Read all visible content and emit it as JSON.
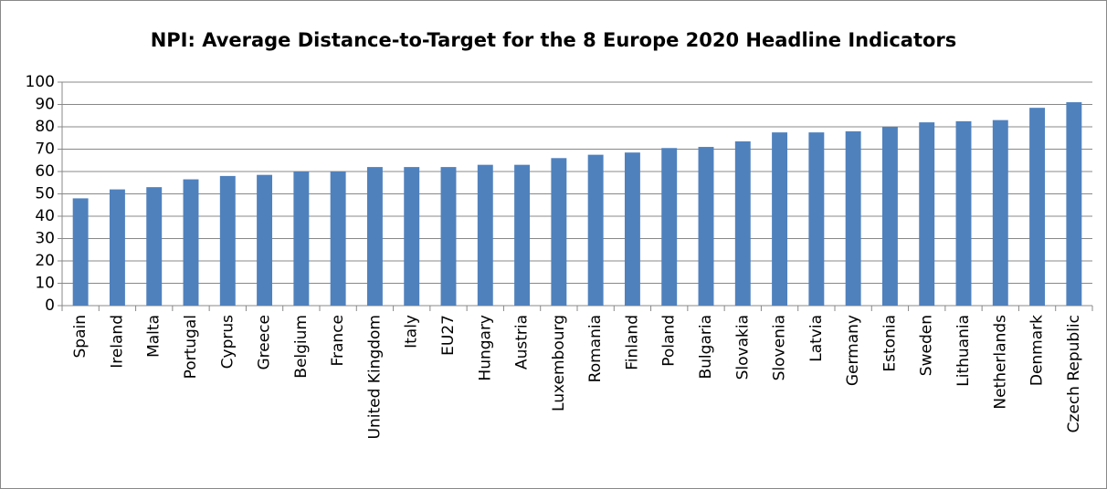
{
  "chart_data": {
    "type": "bar",
    "title": "NPI: Average Distance-to-Target for the 8 Europe 2020 Headline Indicators",
    "categories": [
      "Spain",
      "Ireland",
      "Malta",
      "Portugal",
      "Cyprus",
      "Greece",
      "Belgium",
      "France",
      "United Kingdom",
      "Italy",
      "EU27",
      "Hungary",
      "Austria",
      "Luxembourg",
      "Romania",
      "Finland",
      "Poland",
      "Bulgaria",
      "Slovakia",
      "Slovenia",
      "Latvia",
      "Germany",
      "Estonia",
      "Sweden",
      "Lithuania",
      "Netherlands",
      "Denmark",
      "Czech Republic"
    ],
    "values": [
      48,
      52,
      53,
      56.5,
      58,
      58.5,
      60,
      60,
      62,
      62,
      62,
      63,
      63,
      66,
      67.5,
      68.5,
      70.5,
      71,
      73.5,
      77.5,
      77.5,
      78,
      80,
      82,
      82.5,
      83,
      88.5,
      91
    ],
    "color": "#4f81bd",
    "ylim": [
      0,
      100
    ],
    "yticks": [
      0,
      10,
      20,
      30,
      40,
      50,
      60,
      70,
      80,
      90,
      100
    ],
    "grid": true
  }
}
